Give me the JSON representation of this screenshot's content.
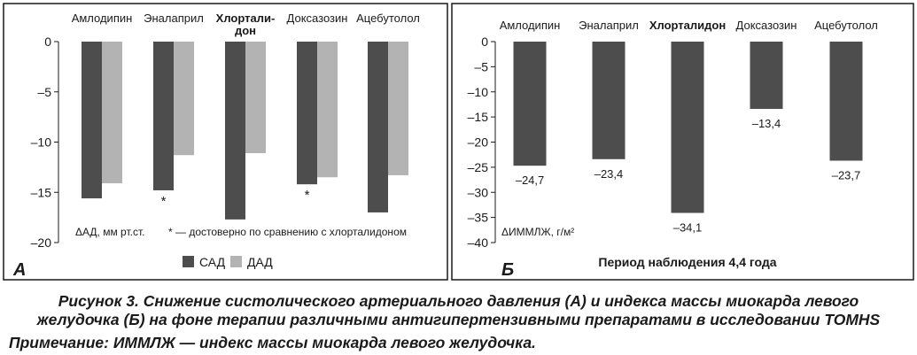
{
  "colors": {
    "sad": "#4d4d4d",
    "dad": "#b3b3b3",
    "frame": "#1a1a1a",
    "text": "#1a1a1a"
  },
  "caption": {
    "line1": "Рисунок 3. Снижение систолического артериального давления (А) и индекса массы миокарда левого",
    "line2": "желудочка (Б) на фоне терапии различными антигипертензивными препаратами в исследовании TOMHS"
  },
  "note": "Примечание: ИММЛЖ — индекс массы миокарда левого желудочка.",
  "chart_data": [
    {
      "type": "bar",
      "panel_label": "А",
      "categories": [
        "Амлодипин",
        "Эналаприл",
        "Хлорталидон",
        "Доксазозин",
        "Ацебутолол"
      ],
      "category_display": [
        [
          "Амлодипин"
        ],
        [
          "Эналаприл"
        ],
        [
          "Хлортали-",
          "дон"
        ],
        [
          "Доксазозин"
        ],
        [
          "Ацебутолол"
        ]
      ],
      "highlight_category": "Хлорталидон",
      "series": [
        {
          "name": "САД",
          "values": [
            -15.6,
            -14.8,
            -17.7,
            -14.2,
            -17.0
          ]
        },
        {
          "name": "ДАД",
          "values": [
            -14.1,
            -11.3,
            -11.1,
            -13.5,
            -13.3
          ]
        }
      ],
      "significance_marks": [
        "",
        "*",
        "",
        "*",
        ""
      ],
      "ylabel": "ΔАД, мм рт.ст.",
      "annotation": "* — достоверно по сравнению с хлорталидоном",
      "ylim": [
        -20,
        0
      ],
      "yticks": [
        0,
        -5,
        -10,
        -15,
        -20
      ],
      "ytick_labels": [
        "0",
        "–5",
        "–10",
        "–15",
        "–20"
      ],
      "legend_position": "bottom"
    },
    {
      "type": "bar",
      "panel_label": "Б",
      "categories": [
        "Амлодипин",
        "Эналаприл",
        "Хлорталидон",
        "Доксазозин",
        "Ацебутолол"
      ],
      "highlight_category": "Хлорталидон",
      "values": [
        -24.7,
        -23.4,
        -34.1,
        -13.4,
        -23.7
      ],
      "value_labels": [
        "–24,7",
        "–23,4",
        "–34,1",
        "–13,4",
        "–23,7"
      ],
      "ylabel": "ΔИММЛЖ, г/м²",
      "xlabel": "Период наблюдения 4,4 года",
      "ylim": [
        -40,
        0
      ],
      "yticks": [
        0,
        -5,
        -10,
        -15,
        -20,
        -25,
        -30,
        -35,
        -40
      ],
      "ytick_labels": [
        "0",
        "–5",
        "–10",
        "–15",
        "–20",
        "–25",
        "–30",
        "–35",
        "–40"
      ]
    }
  ]
}
